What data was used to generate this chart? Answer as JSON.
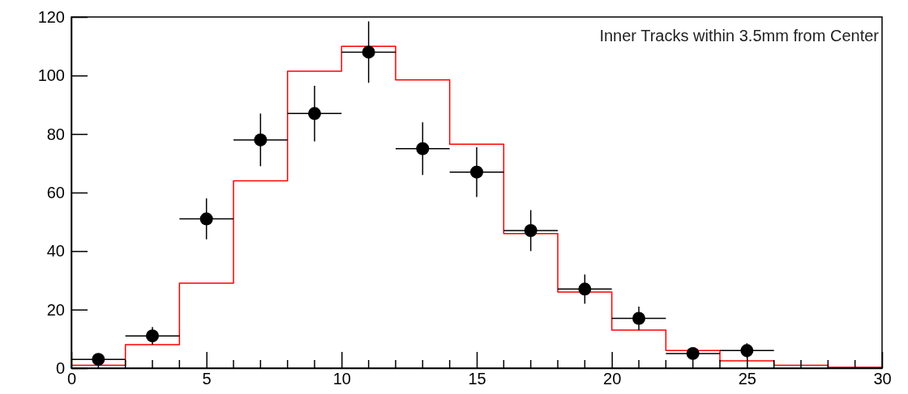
{
  "chart_data": {
    "type": "histogram",
    "color": "#ff0000",
    "bins": [
      0,
      2,
      4,
      6,
      8,
      10,
      12,
      14,
      16,
      18,
      20,
      22,
      24,
      26,
      28,
      30
    ],
    "values": [
      1,
      8,
      29,
      64,
      101.5,
      110,
      98.5,
      76.5,
      46,
      26,
      13,
      6,
      2.5,
      1,
      0.3
    ],
    "series": [
      {
        "type": "scatter",
        "color": "#000000",
        "marker": "circle",
        "x": [
          1,
          3,
          5,
          7,
          9,
          11,
          13,
          15,
          17,
          19,
          21,
          23,
          25
        ],
        "values": [
          3,
          11,
          51,
          78,
          87,
          108,
          75,
          67,
          47,
          27,
          17,
          5,
          6
        ],
        "errors": [
          2,
          3,
          7,
          9,
          9.5,
          10.5,
          9,
          8.5,
          7,
          5,
          4,
          2,
          2.5
        ],
        "xerrors": [
          1,
          1,
          1,
          1,
          1,
          1,
          1,
          1,
          1,
          1,
          1,
          1,
          1
        ]
      }
    ],
    "xlim": [
      0,
      30
    ],
    "ylim": [
      0,
      120
    ],
    "xticks": [
      0,
      {
        "value": 1,
        "label": null
      },
      {
        "value": 2,
        "label": null
      },
      {
        "value": 3,
        "label": null
      },
      {
        "value": 4,
        "label": null
      },
      5,
      {
        "value": 6,
        "label": null
      },
      {
        "value": 7,
        "label": null
      },
      {
        "value": 8,
        "label": null
      },
      {
        "value": 9,
        "label": null
      },
      10,
      {
        "value": 11,
        "label": null
      },
      {
        "value": 12,
        "label": null
      },
      {
        "value": 13,
        "label": null
      },
      {
        "value": 14,
        "label": null
      },
      15,
      {
        "value": 16,
        "label": null
      },
      {
        "value": 17,
        "label": null
      },
      {
        "value": 18,
        "label": null
      },
      {
        "value": 19,
        "label": null
      },
      20,
      {
        "value": 21,
        "label": null
      },
      {
        "value": 22,
        "label": null
      },
      {
        "value": 23,
        "label": null
      },
      {
        "value": 24,
        "label": null
      },
      25,
      {
        "value": 26,
        "label": null
      },
      {
        "value": 27,
        "label": null
      },
      {
        "value": 28,
        "label": null
      },
      {
        "value": 29,
        "label": null
      },
      30
    ],
    "yticks": [
      0,
      20,
      40,
      60,
      80,
      100,
      120
    ],
    "annotations": [
      "Inner Tracks within 3.5mm from Center"
    ],
    "grid": false
  }
}
